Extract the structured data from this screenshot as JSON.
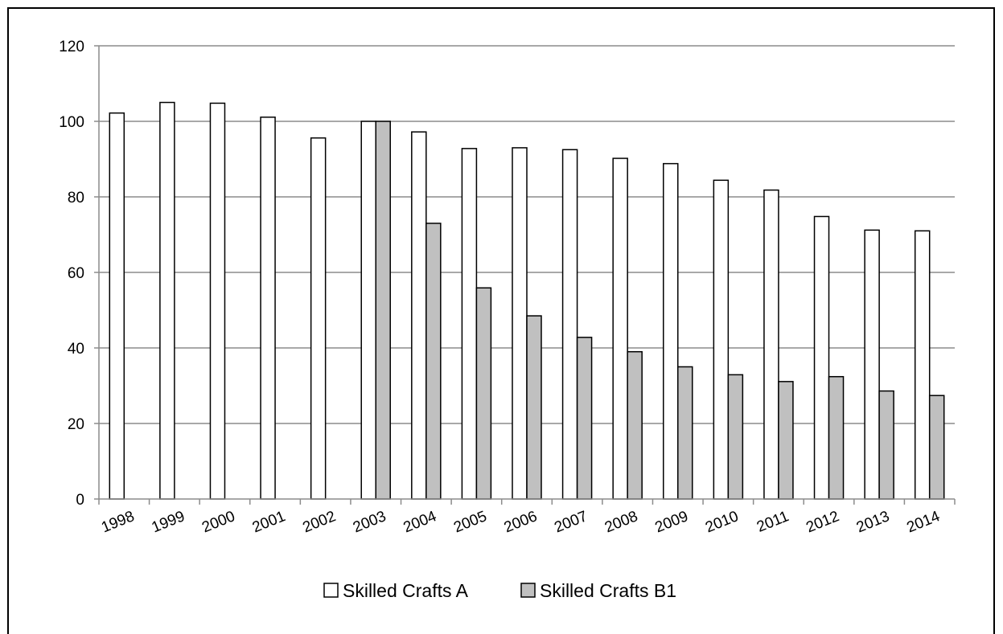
{
  "chart_data": {
    "type": "bar",
    "categories": [
      "1998",
      "1999",
      "2000",
      "2001",
      "2002",
      "2003",
      "2004",
      "2005",
      "2006",
      "2007",
      "2008",
      "2009",
      "2010",
      "2011",
      "2012",
      "2013",
      "2014"
    ],
    "series": [
      {
        "name": "Skilled Crafts A",
        "color": "#ffffff",
        "values": [
          102.2,
          105,
          104.8,
          101.1,
          95.6,
          100,
          97.2,
          92.8,
          93,
          92.5,
          90.2,
          88.8,
          84.4,
          81.8,
          74.8,
          71.2,
          71
        ]
      },
      {
        "name": "Skilled Crafts B1",
        "color": "#c0c0c0",
        "values": [
          null,
          null,
          null,
          null,
          null,
          100,
          73,
          55.9,
          48.5,
          42.8,
          39,
          35,
          32.9,
          31.1,
          32.4,
          28.6,
          27.4
        ]
      }
    ],
    "ylim": [
      0,
      120
    ],
    "yticks": [
      0,
      20,
      40,
      60,
      80,
      100,
      120
    ],
    "grid": true,
    "legend_position": "bottom"
  }
}
